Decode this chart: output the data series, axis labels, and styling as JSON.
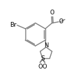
{
  "bg_color": "#ffffff",
  "line_color": "#808080",
  "text_color": "#000000",
  "line_width": 1.0,
  "font_size": 6.0,
  "figsize": [
    1.18,
    1.11
  ],
  "dpi": 100,
  "xlim": [
    0.5,
    10.0
  ],
  "ylim": [
    1.0,
    10.5
  ]
}
